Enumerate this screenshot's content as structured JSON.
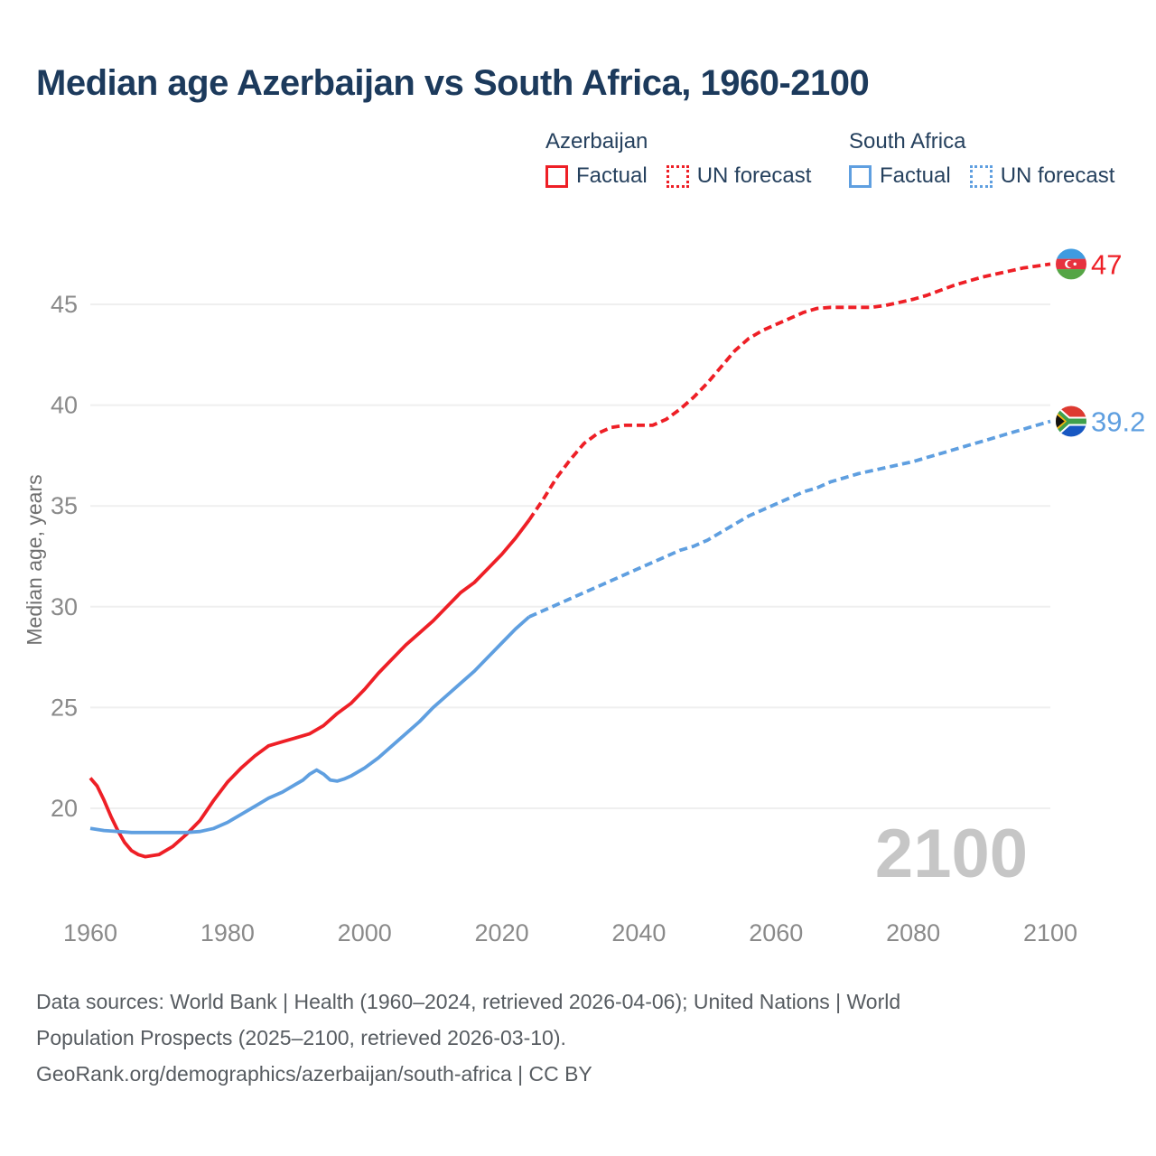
{
  "title": "Median age Azerbaijan vs South Africa, 1960-2100",
  "colors": {
    "azerbaijan": "#ee1f26",
    "south_africa": "#5f9fe0",
    "title_text": "#1c3a5c",
    "legend_text": "#26415e",
    "axis_text": "#8a8a8a",
    "axis_label": "#6f6f6f",
    "gridline": "#efefef",
    "watermark": "#c6c6c6",
    "footer_text": "#575c61"
  },
  "legend": {
    "groups": [
      {
        "name": "Azerbaijan",
        "color": "#ee1f26",
        "items": [
          {
            "label": "Factual",
            "checkbox_style": "solid"
          },
          {
            "label": "UN forecast",
            "checkbox_style": "dotted"
          }
        ]
      },
      {
        "name": "South Africa",
        "color": "#5f9fe0",
        "items": [
          {
            "label": "Factual",
            "checkbox_style": "solid"
          },
          {
            "label": "UN forecast",
            "checkbox_style": "dotted"
          }
        ]
      }
    ]
  },
  "chart_data": {
    "type": "line",
    "title": "Median age Azerbaijan vs South Africa, 1960-2100",
    "xlabel": "",
    "ylabel": "Median age, years",
    "x_range": [
      1960,
      2100
    ],
    "y_ticks": [
      20,
      25,
      30,
      35,
      40,
      45
    ],
    "x_ticks": [
      1960,
      1980,
      2000,
      2020,
      2040,
      2060,
      2080,
      2100
    ],
    "grid": "horizontal",
    "watermark": "2100",
    "series": [
      {
        "name": "Azerbaijan factual",
        "color_key": "azerbaijan",
        "line_style": "solid",
        "points": [
          [
            1960,
            21.5
          ],
          [
            1961,
            21.1
          ],
          [
            1962,
            20.4
          ],
          [
            1963,
            19.6
          ],
          [
            1964,
            18.9
          ],
          [
            1965,
            18.3
          ],
          [
            1966,
            17.9
          ],
          [
            1967,
            17.7
          ],
          [
            1968,
            17.6
          ],
          [
            1970,
            17.7
          ],
          [
            1972,
            18.1
          ],
          [
            1974,
            18.7
          ],
          [
            1976,
            19.4
          ],
          [
            1978,
            20.4
          ],
          [
            1980,
            21.3
          ],
          [
            1982,
            22.0
          ],
          [
            1984,
            22.6
          ],
          [
            1986,
            23.1
          ],
          [
            1988,
            23.3
          ],
          [
            1990,
            23.5
          ],
          [
            1992,
            23.7
          ],
          [
            1994,
            24.1
          ],
          [
            1996,
            24.7
          ],
          [
            1998,
            25.2
          ],
          [
            2000,
            25.9
          ],
          [
            2002,
            26.7
          ],
          [
            2004,
            27.4
          ],
          [
            2006,
            28.1
          ],
          [
            2008,
            28.7
          ],
          [
            2010,
            29.3
          ],
          [
            2012,
            30.0
          ],
          [
            2014,
            30.7
          ],
          [
            2016,
            31.2
          ],
          [
            2018,
            31.9
          ],
          [
            2020,
            32.6
          ],
          [
            2022,
            33.4
          ],
          [
            2024,
            34.3
          ]
        ]
      },
      {
        "name": "Azerbaijan UN forecast",
        "color_key": "azerbaijan",
        "line_style": "dashed",
        "end_label": "47",
        "flag_ref": "az",
        "points": [
          [
            2024,
            34.3
          ],
          [
            2026,
            35.3
          ],
          [
            2028,
            36.4
          ],
          [
            2030,
            37.3
          ],
          [
            2032,
            38.1
          ],
          [
            2034,
            38.6
          ],
          [
            2036,
            38.9
          ],
          [
            2038,
            39.0
          ],
          [
            2040,
            39.0
          ],
          [
            2042,
            39.0
          ],
          [
            2044,
            39.3
          ],
          [
            2046,
            39.8
          ],
          [
            2048,
            40.4
          ],
          [
            2050,
            41.1
          ],
          [
            2052,
            41.9
          ],
          [
            2054,
            42.7
          ],
          [
            2056,
            43.3
          ],
          [
            2058,
            43.7
          ],
          [
            2060,
            44.0
          ],
          [
            2062,
            44.3
          ],
          [
            2064,
            44.6
          ],
          [
            2066,
            44.8
          ],
          [
            2068,
            44.85
          ],
          [
            2070,
            44.85
          ],
          [
            2072,
            44.85
          ],
          [
            2074,
            44.85
          ],
          [
            2076,
            44.95
          ],
          [
            2078,
            45.1
          ],
          [
            2080,
            45.25
          ],
          [
            2082,
            45.45
          ],
          [
            2084,
            45.7
          ],
          [
            2086,
            45.95
          ],
          [
            2088,
            46.15
          ],
          [
            2090,
            46.35
          ],
          [
            2092,
            46.5
          ],
          [
            2094,
            46.65
          ],
          [
            2096,
            46.8
          ],
          [
            2098,
            46.9
          ],
          [
            2100,
            47
          ]
        ]
      },
      {
        "name": "South Africa factual",
        "color_key": "south_africa",
        "line_style": "solid",
        "points": [
          [
            1960,
            19.0
          ],
          [
            1962,
            18.9
          ],
          [
            1964,
            18.85
          ],
          [
            1966,
            18.8
          ],
          [
            1968,
            18.8
          ],
          [
            1970,
            18.8
          ],
          [
            1972,
            18.8
          ],
          [
            1974,
            18.8
          ],
          [
            1976,
            18.85
          ],
          [
            1978,
            19.0
          ],
          [
            1980,
            19.3
          ],
          [
            1982,
            19.7
          ],
          [
            1984,
            20.1
          ],
          [
            1986,
            20.5
          ],
          [
            1988,
            20.8
          ],
          [
            1990,
            21.2
          ],
          [
            1991,
            21.4
          ],
          [
            1992,
            21.7
          ],
          [
            1993,
            21.9
          ],
          [
            1994,
            21.7
          ],
          [
            1995,
            21.4
          ],
          [
            1996,
            21.35
          ],
          [
            1997,
            21.45
          ],
          [
            1998,
            21.6
          ],
          [
            2000,
            22.0
          ],
          [
            2002,
            22.5
          ],
          [
            2004,
            23.1
          ],
          [
            2006,
            23.7
          ],
          [
            2008,
            24.3
          ],
          [
            2010,
            25.0
          ],
          [
            2012,
            25.6
          ],
          [
            2014,
            26.2
          ],
          [
            2016,
            26.8
          ],
          [
            2018,
            27.5
          ],
          [
            2020,
            28.2
          ],
          [
            2022,
            28.9
          ],
          [
            2024,
            29.5
          ]
        ]
      },
      {
        "name": "South Africa UN forecast",
        "color_key": "south_africa",
        "line_style": "dashed",
        "end_label": "39.2",
        "flag_ref": "sa",
        "points": [
          [
            2024,
            29.5
          ],
          [
            2026,
            29.8
          ],
          [
            2028,
            30.1
          ],
          [
            2030,
            30.4
          ],
          [
            2032,
            30.7
          ],
          [
            2034,
            31.0
          ],
          [
            2036,
            31.3
          ],
          [
            2038,
            31.6
          ],
          [
            2040,
            31.9
          ],
          [
            2042,
            32.2
          ],
          [
            2044,
            32.5
          ],
          [
            2046,
            32.8
          ],
          [
            2048,
            33.0
          ],
          [
            2050,
            33.3
          ],
          [
            2052,
            33.7
          ],
          [
            2054,
            34.1
          ],
          [
            2056,
            34.5
          ],
          [
            2058,
            34.8
          ],
          [
            2060,
            35.1
          ],
          [
            2062,
            35.4
          ],
          [
            2064,
            35.7
          ],
          [
            2066,
            35.9
          ],
          [
            2068,
            36.2
          ],
          [
            2070,
            36.4
          ],
          [
            2072,
            36.6
          ],
          [
            2074,
            36.75
          ],
          [
            2076,
            36.9
          ],
          [
            2078,
            37.05
          ],
          [
            2080,
            37.2
          ],
          [
            2082,
            37.4
          ],
          [
            2084,
            37.6
          ],
          [
            2086,
            37.8
          ],
          [
            2088,
            38.0
          ],
          [
            2090,
            38.2
          ],
          [
            2092,
            38.4
          ],
          [
            2094,
            38.6
          ],
          [
            2096,
            38.8
          ],
          [
            2098,
            39.0
          ],
          [
            2100,
            39.2
          ]
        ]
      }
    ]
  },
  "footer": {
    "line1": "Data sources: World Bank | Health (1960–2024, retrieved 2026-04-06); United Nations | World",
    "line2": "Population Prospects (2025–2100, retrieved 2026-03-10).",
    "line3": "GeoRank.org/demographics/azerbaijan/south-africa | CC BY"
  }
}
